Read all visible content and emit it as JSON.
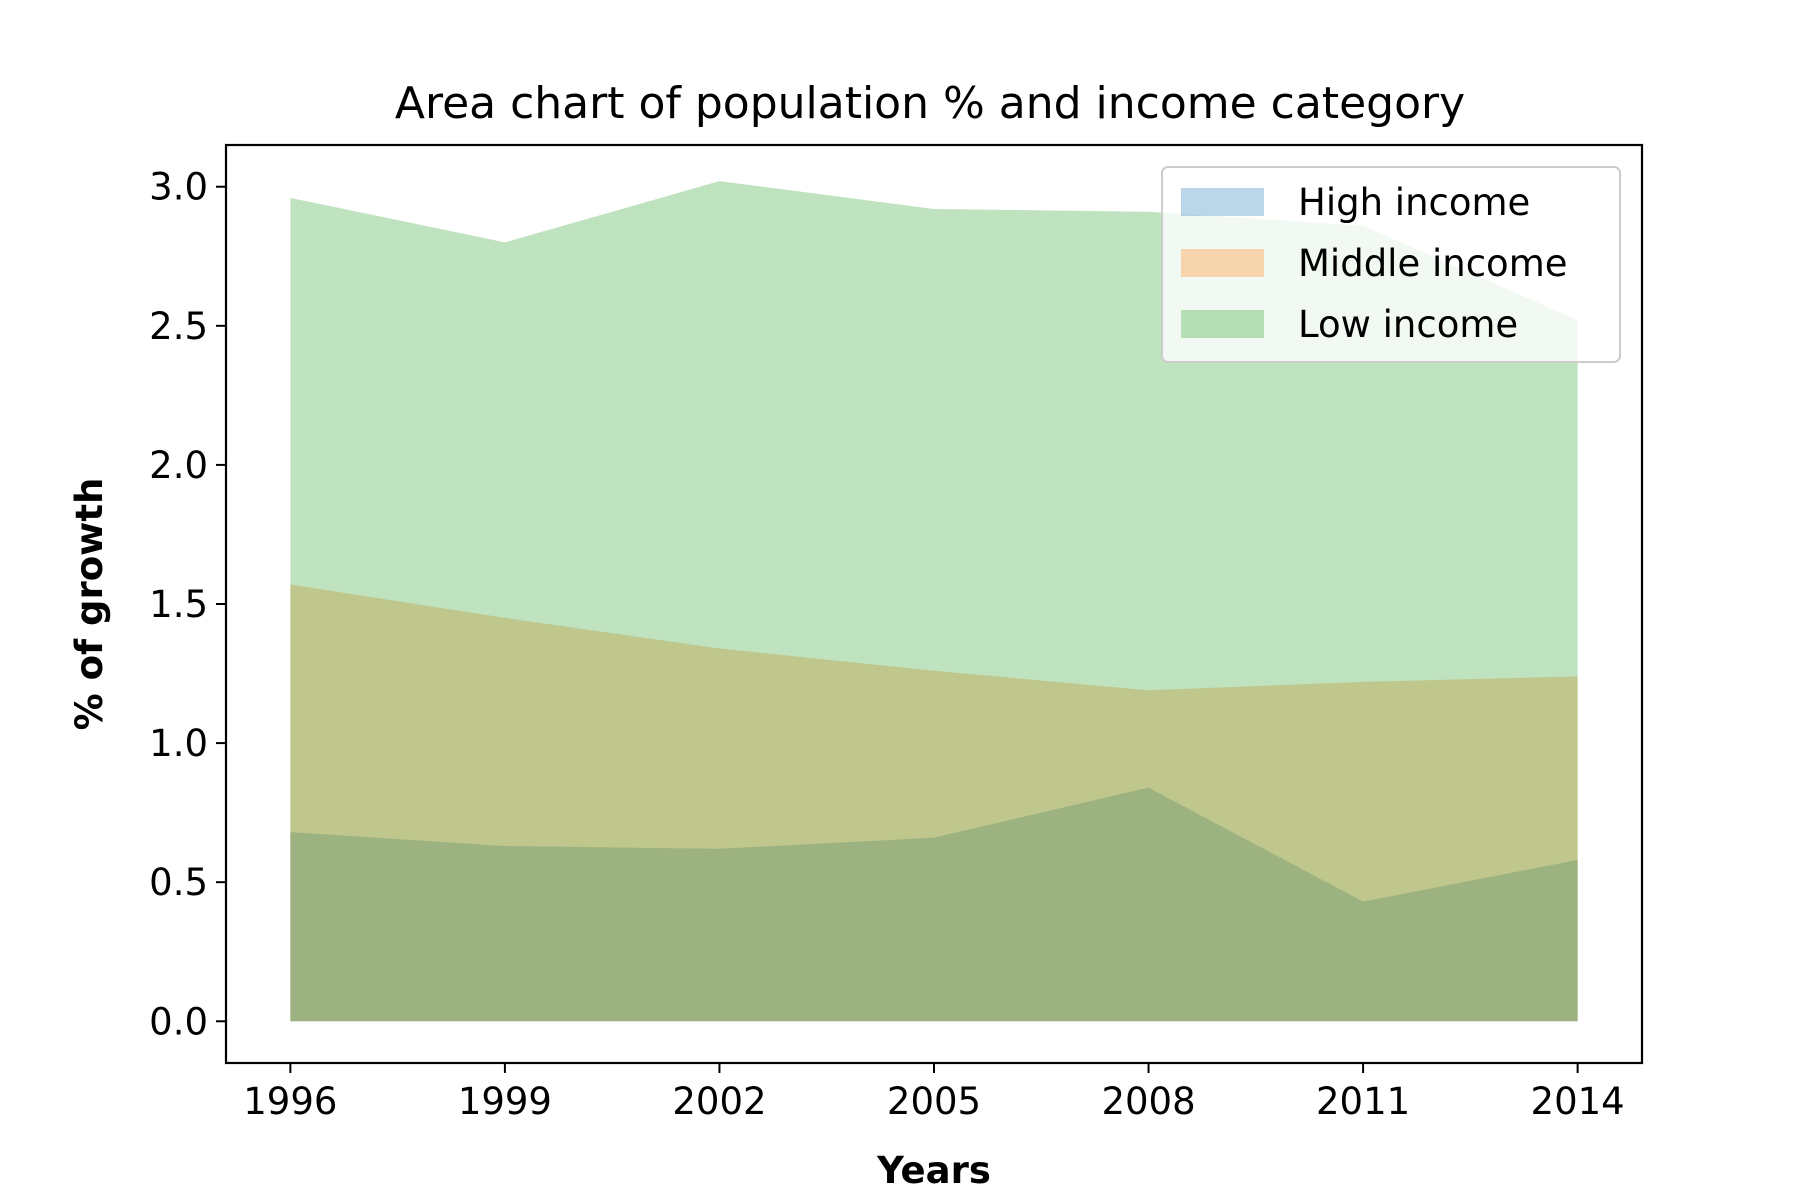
{
  "chart_data": {
    "type": "area",
    "title": "Area chart of population % and income category",
    "xlabel": "Years",
    "ylabel": "% of growth",
    "x": [
      1996,
      1999,
      2002,
      2005,
      2008,
      2011,
      2014
    ],
    "x_ticks": [
      "1996",
      "1999",
      "2002",
      "2005",
      "2008",
      "2011",
      "2014"
    ],
    "y_ticks": [
      "0.0",
      "0.5",
      "1.0",
      "1.5",
      "2.0",
      "2.5",
      "3.0"
    ],
    "xlim": [
      1995.1,
      2014.9
    ],
    "ylim": [
      -0.15,
      3.15
    ],
    "grid": false,
    "legend_position": "upper right",
    "overlapping": true,
    "alpha": 0.3,
    "series": [
      {
        "name": "High income",
        "color": "#1f77b4",
        "values": [
          0.68,
          0.63,
          0.62,
          0.66,
          0.84,
          0.43,
          0.58
        ]
      },
      {
        "name": "Middle income",
        "color": "#ff7f0e",
        "values": [
          1.57,
          1.45,
          1.34,
          1.26,
          1.19,
          1.22,
          1.24
        ]
      },
      {
        "name": "Low income",
        "color": "#2ca02c",
        "values": [
          2.96,
          2.8,
          3.02,
          2.92,
          2.91,
          2.86,
          2.52
        ]
      }
    ]
  }
}
